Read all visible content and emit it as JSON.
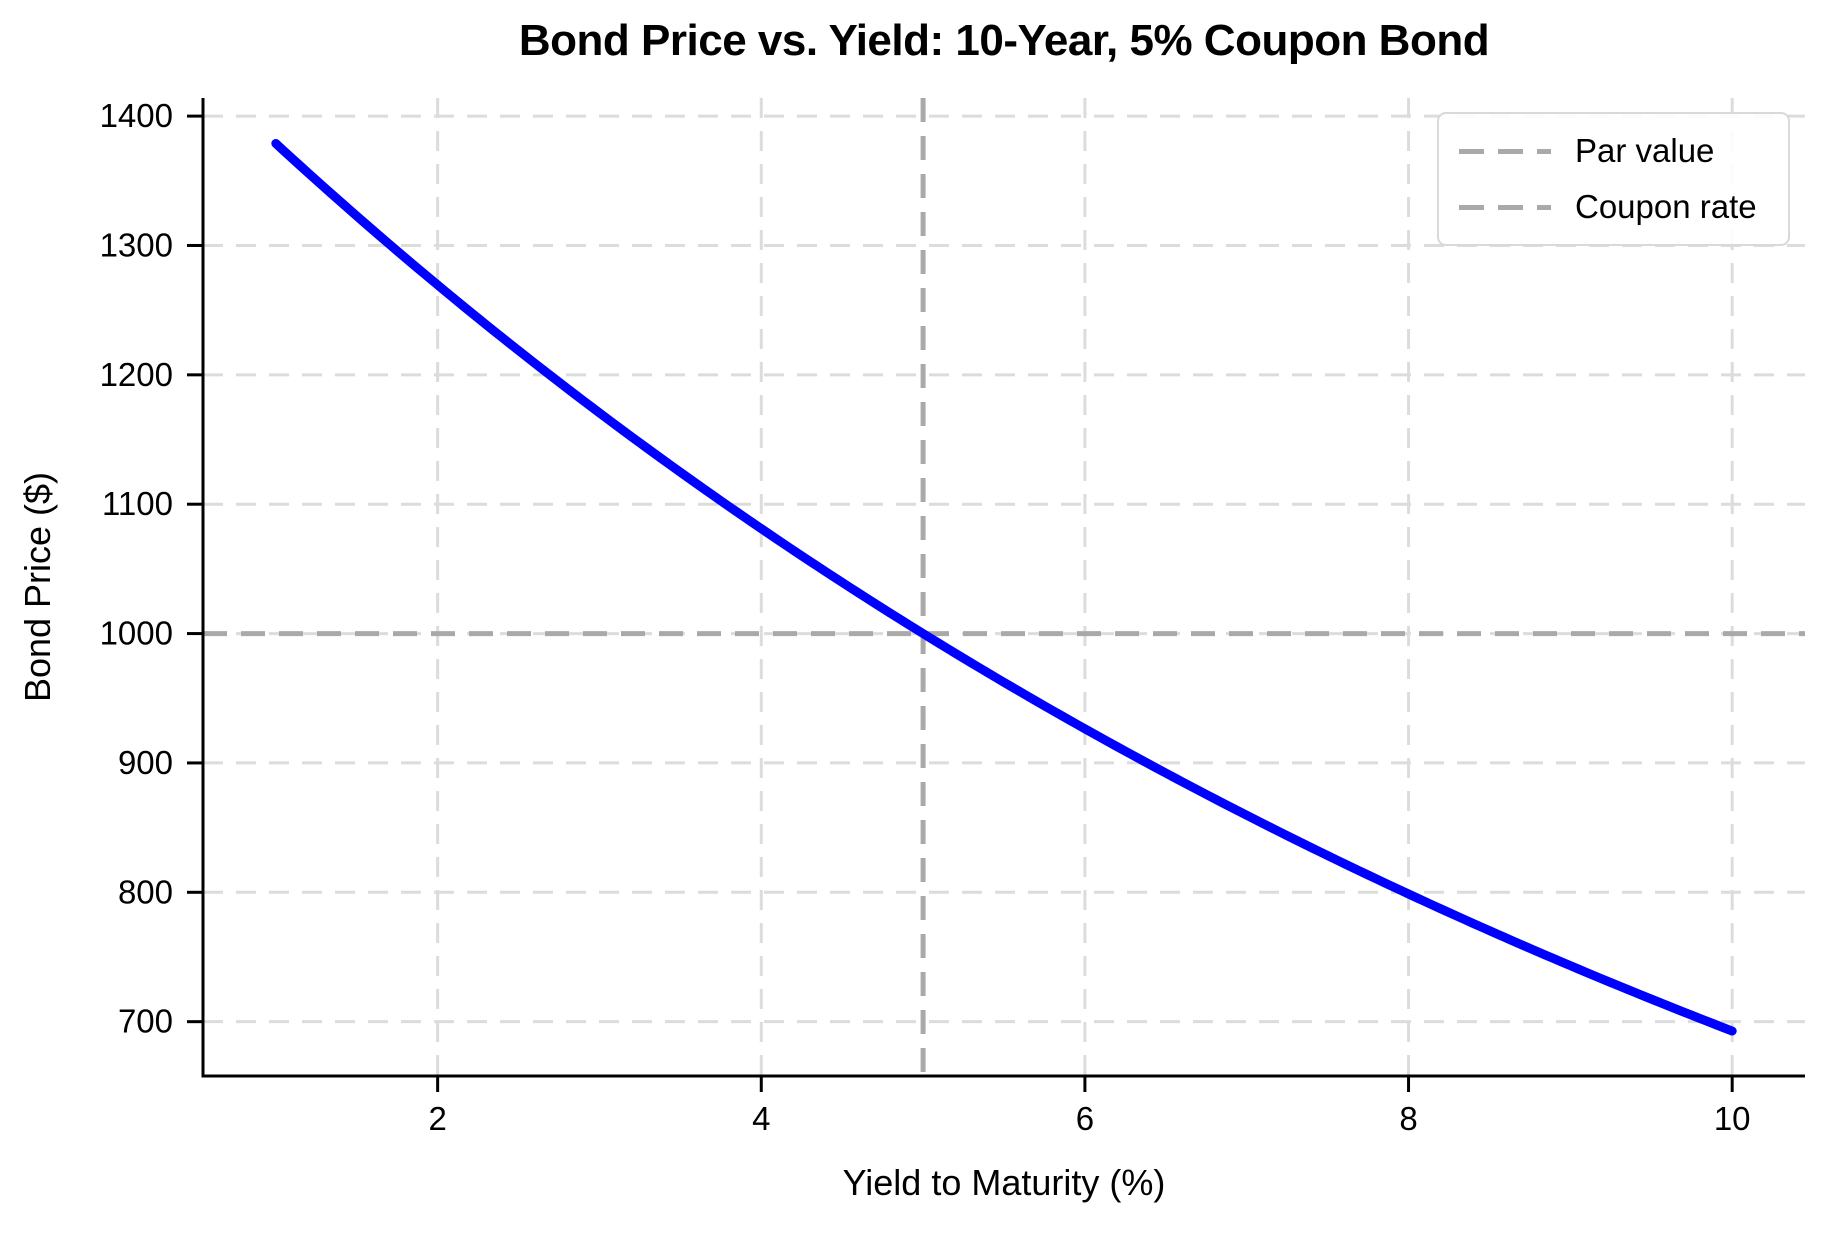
{
  "chart_data": {
    "type": "line",
    "title": "Bond Price vs. Yield: 10-Year, 5% Coupon Bond",
    "xlabel": "Yield to Maturity (%)",
    "ylabel": "Bond Price ($)",
    "xlim": [
      0.55,
      10.45
    ],
    "ylim": [
      658,
      1414
    ],
    "xticks": [
      2,
      4,
      6,
      8,
      10
    ],
    "yticks": [
      700,
      800,
      900,
      1000,
      1100,
      1200,
      1300,
      1400
    ],
    "grid": true,
    "grid_style": "dashed",
    "bond_params": {
      "face_value": 1000,
      "coupon_rate_pct": 5,
      "maturity_years": 10
    },
    "series": [
      {
        "name": "Bond price",
        "color": "#0000ff",
        "x": [
          1,
          1.5,
          2,
          2.5,
          3,
          3.5,
          4,
          4.5,
          5,
          5.5,
          6,
          6.5,
          7,
          7.5,
          8,
          8.5,
          9,
          9.5,
          10
        ],
        "y": [
          1378.85,
          1322.78,
          1269.48,
          1218.8,
          1170.6,
          1124.75,
          1081.11,
          1039.56,
          1000.0,
          962.31,
          926.4,
          892.17,
          859.53,
          828.4,
          798.7,
          770.35,
          743.29,
          717.45,
          692.77
        ]
      }
    ],
    "reference_lines": [
      {
        "label": "Par value",
        "orientation": "horizontal",
        "value": 1000,
        "color": "#a9a9a9"
      },
      {
        "label": "Coupon rate",
        "orientation": "vertical",
        "value": 5,
        "color": "#a9a9a9"
      }
    ],
    "legend": {
      "position": "upper right",
      "entries": [
        "Par value",
        "Coupon rate"
      ]
    }
  },
  "colors": {
    "line": "#0000ff",
    "reference": "#a9a9a9",
    "grid": "#dcdcdc",
    "spine": "#000000",
    "background": "#ffffff"
  }
}
